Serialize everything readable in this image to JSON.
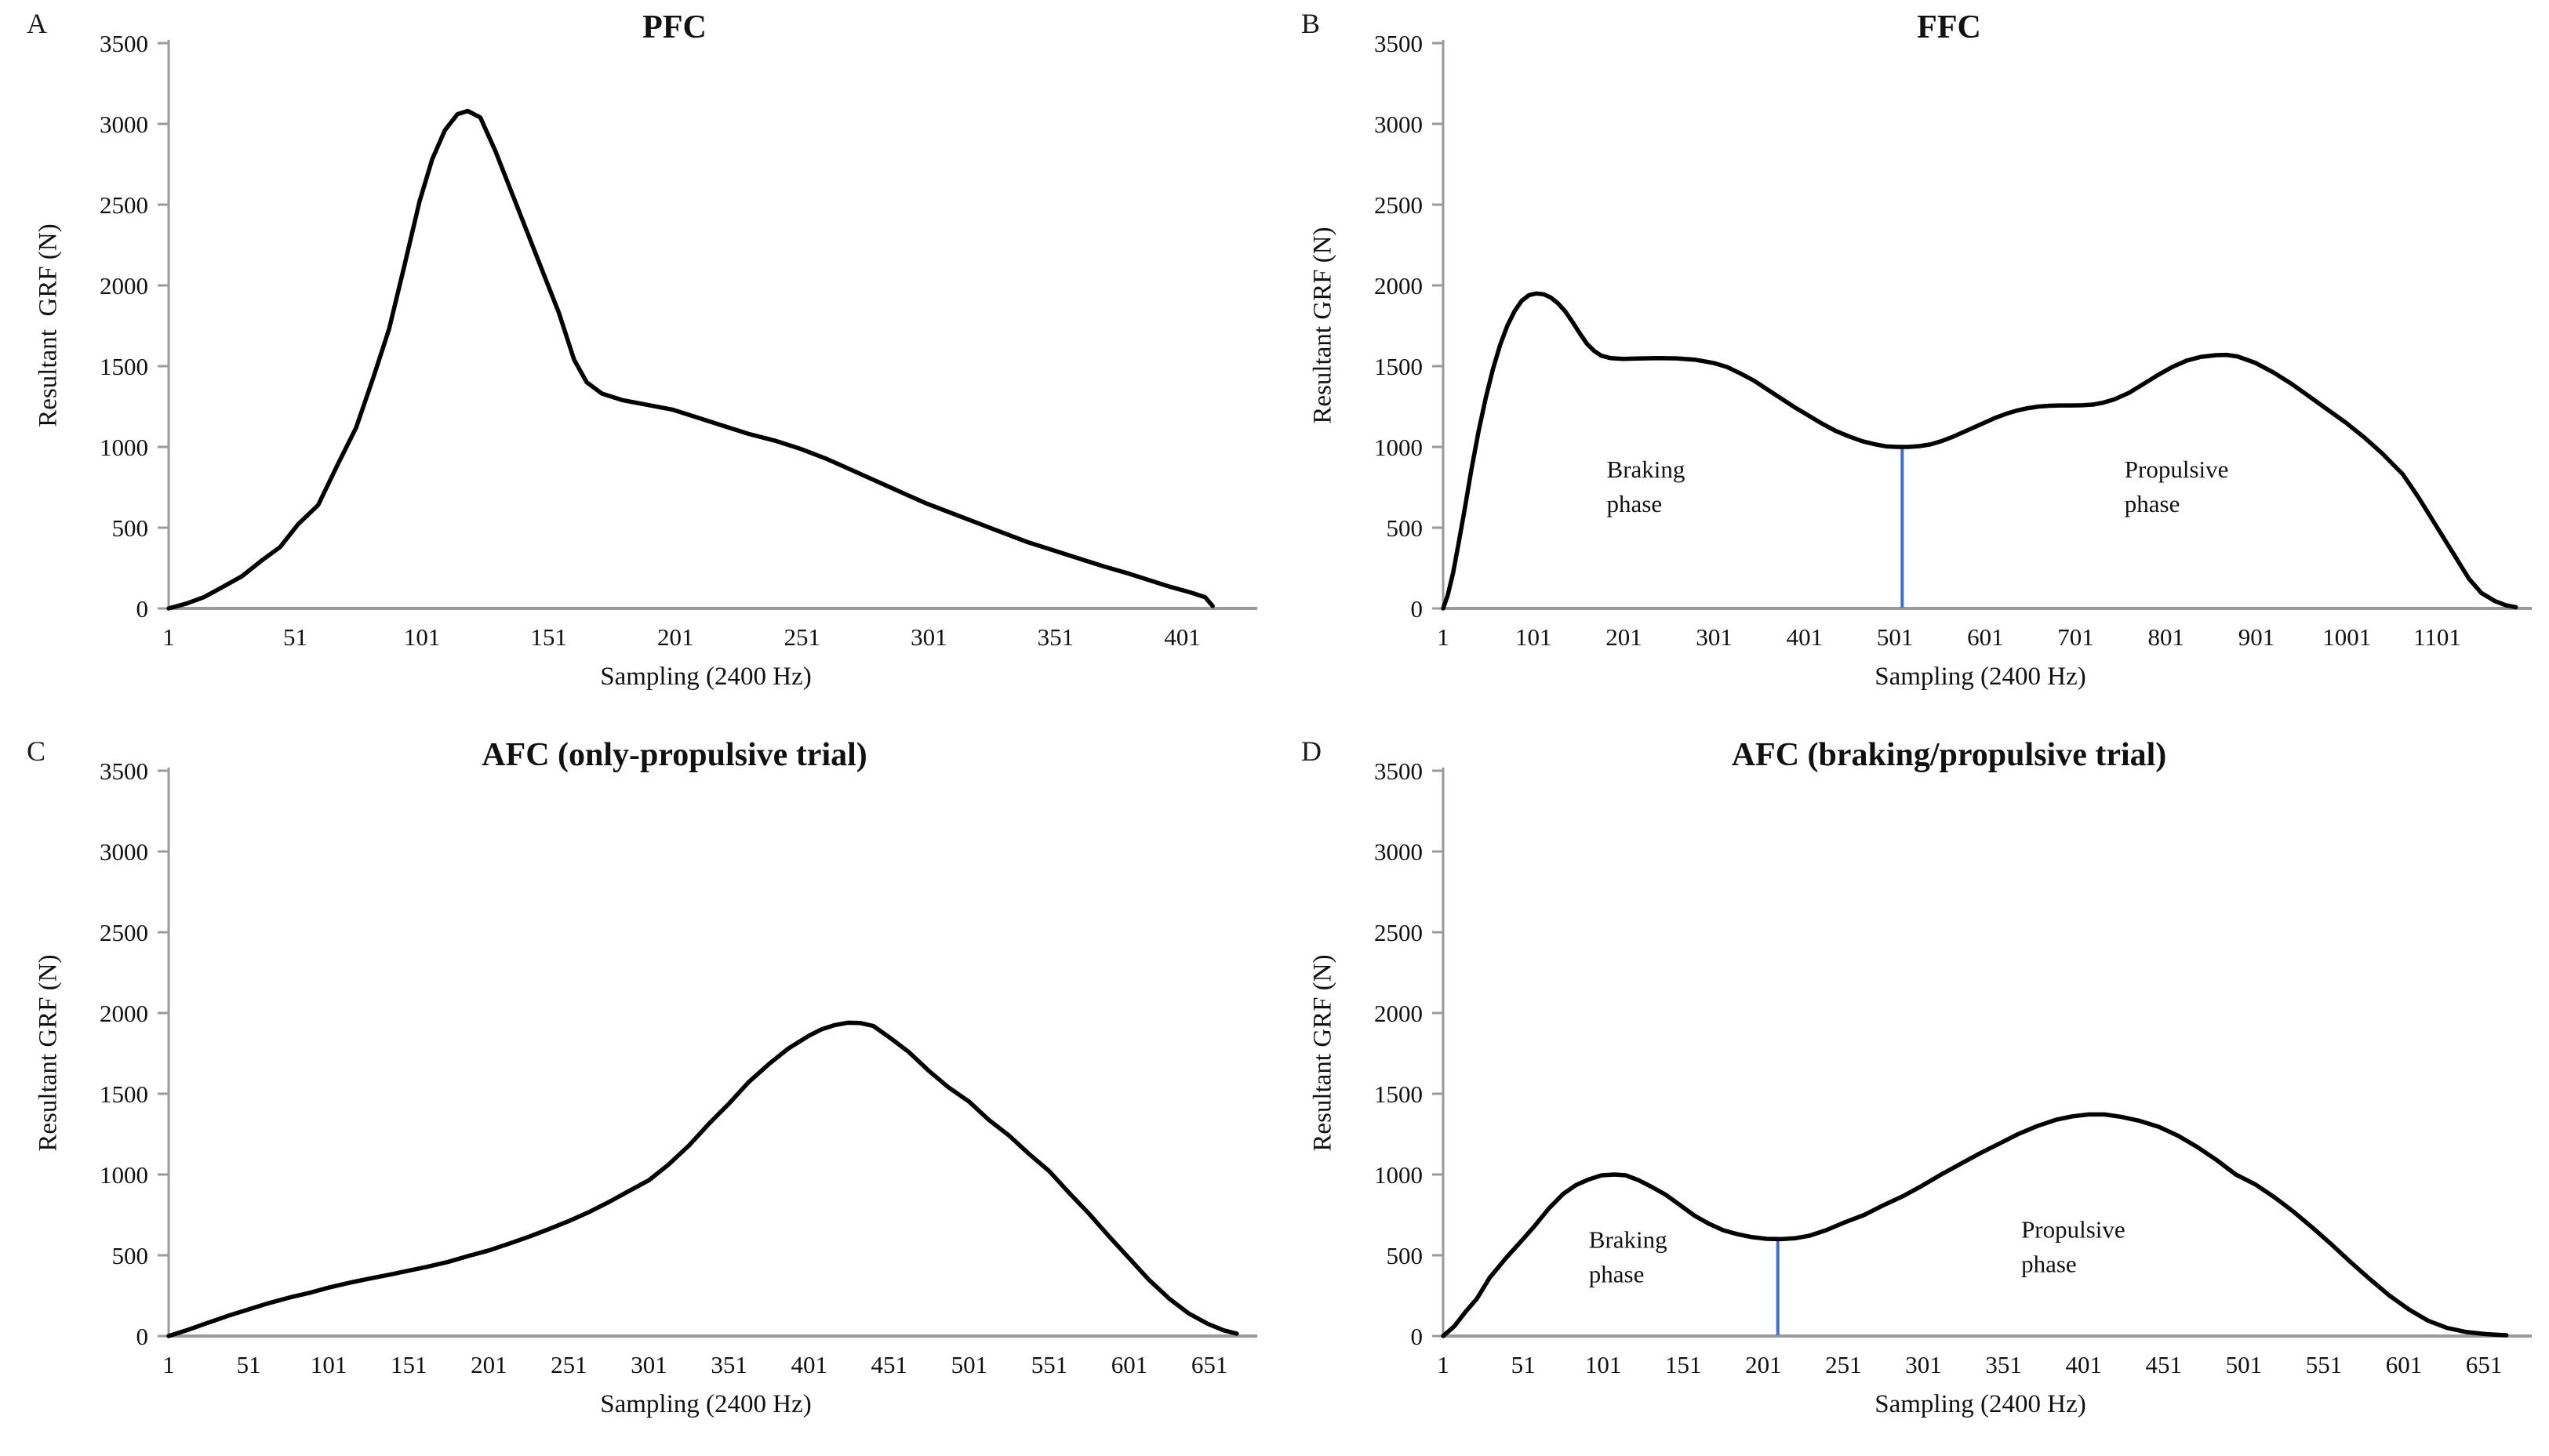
{
  "figure": {
    "background": "#ffffff",
    "curve_color": "#000000",
    "axis_color": "#9a9a9a",
    "tick_text_color": "#111111",
    "divider_color": "#3c6fd0"
  },
  "chart_data": [
    {
      "type": "line",
      "panel_letter": "A",
      "title": "PFC",
      "ylabel": "Resultant  GRF (N)",
      "xlabel": "Sampling (2400 Hz)",
      "ylim": [
        0,
        3500
      ],
      "yticks": [
        0,
        500,
        1000,
        1500,
        2000,
        2500,
        3000,
        3500
      ],
      "xticks": [
        1,
        51,
        101,
        151,
        201,
        251,
        301,
        351,
        401
      ],
      "xmax": 425,
      "grid": false,
      "legend": "none",
      "divider": null,
      "annotations": [],
      "points": [
        [
          1,
          0
        ],
        [
          8,
          30
        ],
        [
          15,
          70
        ],
        [
          22,
          130
        ],
        [
          30,
          200
        ],
        [
          38,
          300
        ],
        [
          45,
          380
        ],
        [
          52,
          520
        ],
        [
          60,
          640
        ],
        [
          68,
          900
        ],
        [
          75,
          1120
        ],
        [
          82,
          1440
        ],
        [
          88,
          1730
        ],
        [
          94,
          2120
        ],
        [
          100,
          2520
        ],
        [
          105,
          2780
        ],
        [
          110,
          2960
        ],
        [
          115,
          3060
        ],
        [
          119,
          3080
        ],
        [
          124,
          3040
        ],
        [
          130,
          2830
        ],
        [
          137,
          2550
        ],
        [
          143,
          2310
        ],
        [
          149,
          2070
        ],
        [
          155,
          1830
        ],
        [
          161,
          1540
        ],
        [
          166,
          1400
        ],
        [
          172,
          1330
        ],
        [
          180,
          1290
        ],
        [
          190,
          1260
        ],
        [
          200,
          1230
        ],
        [
          210,
          1180
        ],
        [
          220,
          1130
        ],
        [
          230,
          1080
        ],
        [
          240,
          1040
        ],
        [
          250,
          990
        ],
        [
          260,
          930
        ],
        [
          270,
          860
        ],
        [
          280,
          790
        ],
        [
          290,
          720
        ],
        [
          300,
          650
        ],
        [
          310,
          590
        ],
        [
          320,
          530
        ],
        [
          330,
          470
        ],
        [
          340,
          410
        ],
        [
          350,
          360
        ],
        [
          360,
          310
        ],
        [
          370,
          260
        ],
        [
          380,
          215
        ],
        [
          388,
          175
        ],
        [
          396,
          135
        ],
        [
          404,
          100
        ],
        [
          410,
          70
        ],
        [
          413,
          15
        ]
      ]
    },
    {
      "type": "line",
      "panel_letter": "B",
      "title": "FFC",
      "ylabel": "Resultant GRF (N)",
      "xlabel": "Sampling (2400 Hz)",
      "ylim": [
        0,
        3500
      ],
      "yticks": [
        0,
        500,
        1000,
        1500,
        2000,
        2500,
        3000,
        3500
      ],
      "xticks": [
        1,
        101,
        201,
        301,
        401,
        501,
        601,
        701,
        801,
        901,
        1001,
        1101
      ],
      "xmax": 1190,
      "grid": false,
      "legend": "none",
      "divider": {
        "sample": 509,
        "value": 1000
      },
      "annotations": [
        {
          "lines": [
            "Braking",
            "phase"
          ],
          "sample": 182,
          "value": 810
        },
        {
          "lines": [
            "Propulsive",
            "phase"
          ],
          "sample": 755,
          "value": 810
        }
      ],
      "points": [
        [
          1,
          0
        ],
        [
          6,
          80
        ],
        [
          12,
          220
        ],
        [
          18,
          400
        ],
        [
          25,
          620
        ],
        [
          32,
          850
        ],
        [
          40,
          1090
        ],
        [
          48,
          1300
        ],
        [
          56,
          1480
        ],
        [
          64,
          1630
        ],
        [
          72,
          1750
        ],
        [
          80,
          1840
        ],
        [
          88,
          1905
        ],
        [
          96,
          1940
        ],
        [
          104,
          1950
        ],
        [
          112,
          1945
        ],
        [
          120,
          1925
        ],
        [
          128,
          1890
        ],
        [
          136,
          1840
        ],
        [
          144,
          1775
        ],
        [
          152,
          1705
        ],
        [
          160,
          1640
        ],
        [
          168,
          1595
        ],
        [
          176,
          1565
        ],
        [
          186,
          1550
        ],
        [
          200,
          1545
        ],
        [
          220,
          1548
        ],
        [
          240,
          1550
        ],
        [
          260,
          1548
        ],
        [
          280,
          1540
        ],
        [
          300,
          1520
        ],
        [
          315,
          1495
        ],
        [
          330,
          1455
        ],
        [
          345,
          1410
        ],
        [
          360,
          1355
        ],
        [
          375,
          1300
        ],
        [
          390,
          1245
        ],
        [
          405,
          1195
        ],
        [
          420,
          1145
        ],
        [
          435,
          1100
        ],
        [
          450,
          1065
        ],
        [
          465,
          1035
        ],
        [
          480,
          1015
        ],
        [
          492,
          1003
        ],
        [
          504,
          1000
        ],
        [
          516,
          1000
        ],
        [
          528,
          1005
        ],
        [
          540,
          1015
        ],
        [
          552,
          1035
        ],
        [
          564,
          1060
        ],
        [
          576,
          1090
        ],
        [
          588,
          1120
        ],
        [
          600,
          1150
        ],
        [
          612,
          1180
        ],
        [
          624,
          1205
        ],
        [
          636,
          1225
        ],
        [
          648,
          1240
        ],
        [
          660,
          1250
        ],
        [
          672,
          1255
        ],
        [
          684,
          1257
        ],
        [
          696,
          1257
        ],
        [
          708,
          1258
        ],
        [
          720,
          1262
        ],
        [
          732,
          1275
        ],
        [
          744,
          1295
        ],
        [
          760,
          1335
        ],
        [
          776,
          1390
        ],
        [
          792,
          1445
        ],
        [
          808,
          1495
        ],
        [
          824,
          1535
        ],
        [
          840,
          1558
        ],
        [
          856,
          1568
        ],
        [
          868,
          1570
        ],
        [
          880,
          1560
        ],
        [
          900,
          1520
        ],
        [
          920,
          1460
        ],
        [
          940,
          1390
        ],
        [
          960,
          1310
        ],
        [
          980,
          1230
        ],
        [
          1000,
          1150
        ],
        [
          1020,
          1060
        ],
        [
          1040,
          960
        ],
        [
          1063,
          830
        ],
        [
          1080,
          690
        ],
        [
          1100,
          510
        ],
        [
          1120,
          330
        ],
        [
          1136,
          185
        ],
        [
          1150,
          95
        ],
        [
          1165,
          45
        ],
        [
          1177,
          20
        ],
        [
          1188,
          8
        ]
      ]
    },
    {
      "type": "line",
      "panel_letter": "C",
      "title": "AFC (only-propulsive trial)",
      "ylabel": "Resultant GRF (N)",
      "xlabel": "Sampling (2400 Hz)",
      "ylim": [
        0,
        3500
      ],
      "yticks": [
        0,
        500,
        1000,
        1500,
        2000,
        2500,
        3000,
        3500
      ],
      "xticks": [
        1,
        51,
        101,
        151,
        201,
        251,
        301,
        351,
        401,
        451,
        501,
        551,
        601,
        651
      ],
      "xmax": 672,
      "grid": false,
      "legend": "none",
      "divider": null,
      "annotations": [],
      "points": [
        [
          1,
          0
        ],
        [
          12,
          35
        ],
        [
          25,
          80
        ],
        [
          38,
          125
        ],
        [
          51,
          165
        ],
        [
          64,
          205
        ],
        [
          77,
          240
        ],
        [
          90,
          270
        ],
        [
          101,
          300
        ],
        [
          114,
          330
        ],
        [
          126,
          355
        ],
        [
          139,
          380
        ],
        [
          151,
          405
        ],
        [
          163,
          430
        ],
        [
          176,
          460
        ],
        [
          188,
          495
        ],
        [
          201,
          530
        ],
        [
          213,
          570
        ],
        [
          226,
          615
        ],
        [
          238,
          660
        ],
        [
          251,
          712
        ],
        [
          263,
          765
        ],
        [
          276,
          830
        ],
        [
          288,
          895
        ],
        [
          301,
          965
        ],
        [
          313,
          1060
        ],
        [
          326,
          1180
        ],
        [
          338,
          1310
        ],
        [
          351,
          1440
        ],
        [
          363,
          1570
        ],
        [
          376,
          1685
        ],
        [
          388,
          1780
        ],
        [
          401,
          1860
        ],
        [
          409,
          1900
        ],
        [
          417,
          1925
        ],
        [
          425,
          1940
        ],
        [
          433,
          1938
        ],
        [
          441,
          1920
        ],
        [
          451,
          1850
        ],
        [
          463,
          1760
        ],
        [
          476,
          1640
        ],
        [
          488,
          1540
        ],
        [
          501,
          1450
        ],
        [
          513,
          1340
        ],
        [
          526,
          1240
        ],
        [
          538,
          1130
        ],
        [
          551,
          1020
        ],
        [
          563,
          890
        ],
        [
          576,
          755
        ],
        [
          588,
          620
        ],
        [
          601,
          480
        ],
        [
          613,
          350
        ],
        [
          626,
          230
        ],
        [
          638,
          140
        ],
        [
          650,
          75
        ],
        [
          660,
          35
        ],
        [
          668,
          15
        ]
      ]
    },
    {
      "type": "line",
      "panel_letter": "D",
      "title": "AFC (braking/propulsive trial)",
      "ylabel": "Resultant GRF (N)",
      "xlabel": "Sampling (2400 Hz)",
      "ylim": [
        0,
        3500
      ],
      "yticks": [
        0,
        500,
        1000,
        1500,
        2000,
        2500,
        3000,
        3500
      ],
      "xticks": [
        1,
        51,
        101,
        151,
        201,
        251,
        301,
        351,
        401,
        451,
        501,
        551,
        601,
        651
      ],
      "xmax": 672,
      "grid": false,
      "legend": "none",
      "divider": {
        "sample": 210,
        "value": 600
      },
      "annotations": [
        {
          "lines": [
            "Braking",
            "phase"
          ],
          "sample": 92,
          "value": 545
        },
        {
          "lines": [
            "Propulsive",
            "phase"
          ],
          "sample": 362,
          "value": 610
        }
      ],
      "points": [
        [
          1,
          0
        ],
        [
          8,
          60
        ],
        [
          15,
          150
        ],
        [
          22,
          230
        ],
        [
          30,
          360
        ],
        [
          40,
          480
        ],
        [
          50,
          590
        ],
        [
          58,
          680
        ],
        [
          67,
          790
        ],
        [
          76,
          880
        ],
        [
          84,
          935
        ],
        [
          92,
          970
        ],
        [
          100,
          995
        ],
        [
          108,
          1000
        ],
        [
          115,
          995
        ],
        [
          123,
          965
        ],
        [
          131,
          925
        ],
        [
          140,
          875
        ],
        [
          149,
          810
        ],
        [
          158,
          745
        ],
        [
          167,
          695
        ],
        [
          176,
          655
        ],
        [
          185,
          630
        ],
        [
          194,
          612
        ],
        [
          203,
          602
        ],
        [
          212,
          600
        ],
        [
          221,
          606
        ],
        [
          230,
          622
        ],
        [
          240,
          655
        ],
        [
          252,
          705
        ],
        [
          264,
          750
        ],
        [
          276,
          810
        ],
        [
          288,
          865
        ],
        [
          300,
          930
        ],
        [
          312,
          1000
        ],
        [
          324,
          1065
        ],
        [
          336,
          1130
        ],
        [
          348,
          1190
        ],
        [
          360,
          1250
        ],
        [
          372,
          1300
        ],
        [
          384,
          1340
        ],
        [
          394,
          1360
        ],
        [
          404,
          1372
        ],
        [
          414,
          1372
        ],
        [
          424,
          1358
        ],
        [
          436,
          1332
        ],
        [
          448,
          1295
        ],
        [
          460,
          1240
        ],
        [
          472,
          1170
        ],
        [
          484,
          1090
        ],
        [
          496,
          1000
        ],
        [
          508,
          940
        ],
        [
          520,
          860
        ],
        [
          532,
          770
        ],
        [
          544,
          670
        ],
        [
          556,
          565
        ],
        [
          568,
          455
        ],
        [
          580,
          350
        ],
        [
          592,
          250
        ],
        [
          604,
          165
        ],
        [
          616,
          95
        ],
        [
          628,
          50
        ],
        [
          640,
          25
        ],
        [
          652,
          12
        ],
        [
          665,
          5
        ]
      ]
    }
  ]
}
